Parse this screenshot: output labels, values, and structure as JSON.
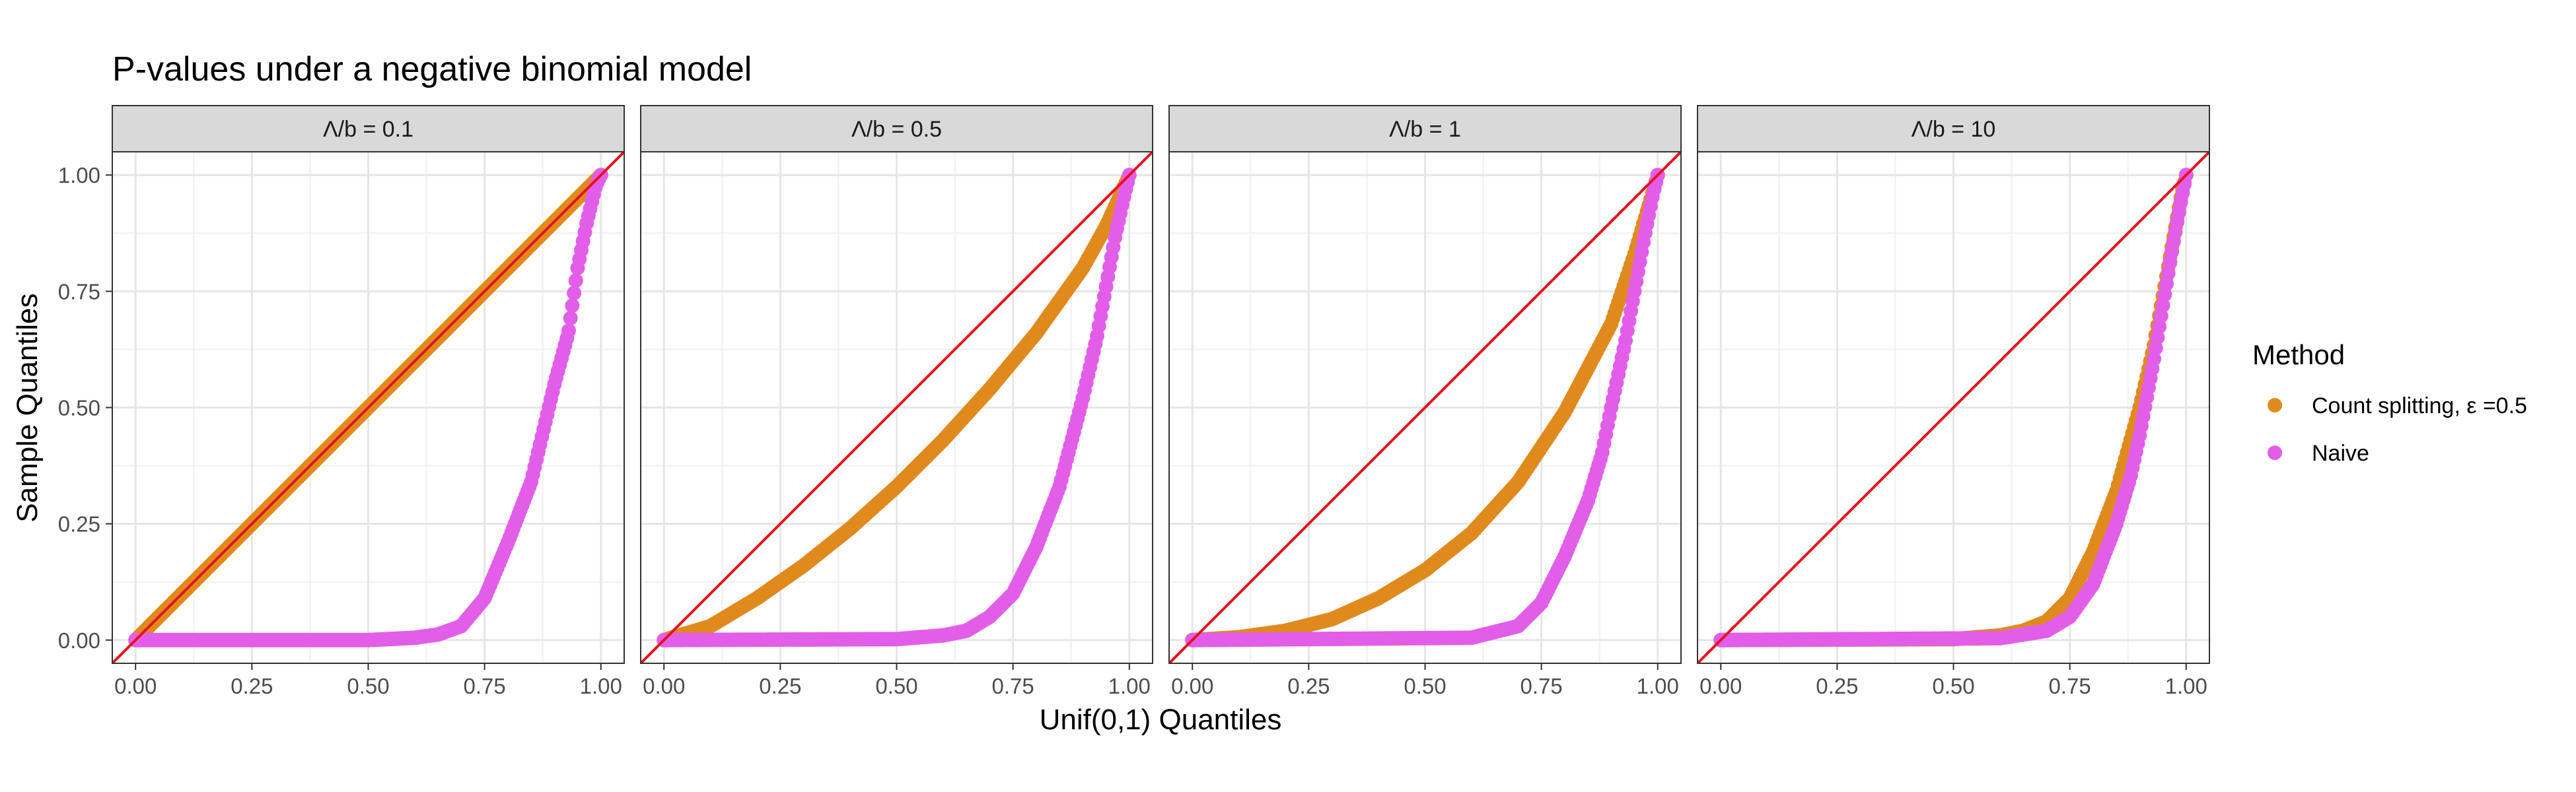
{
  "chart_data": {
    "type": "scatter",
    "title": "P-values under a negative binomial model",
    "xlabel": "Unif(0,1) Quantiles",
    "ylabel": "Sample Quantiles",
    "xlim": [
      -0.05,
      1.05
    ],
    "ylim": [
      -0.05,
      1.05
    ],
    "xticks": [
      "0.00",
      "0.25",
      "0.50",
      "0.75",
      "1.00"
    ],
    "yticks": [
      "0.00",
      "0.25",
      "0.50",
      "0.75",
      "1.00"
    ],
    "grid": true,
    "reference_line": {
      "type": "diagonal",
      "intercept": 0,
      "slope": 1,
      "color": "#e8111c"
    },
    "legend": {
      "title": "Method",
      "position": "right",
      "entries": [
        {
          "label": "Count splitting, ε =0.5",
          "color": "#e08a1e"
        },
        {
          "label": "Naive",
          "color": "#e25ee8"
        }
      ]
    },
    "facets": [
      {
        "label": "Λ/b = 0.1",
        "series": [
          {
            "name": "Count splitting, ε =0.5",
            "x": [
              0,
              0.25,
              0.5,
              0.75,
              1
            ],
            "y": [
              0,
              0.25,
              0.5,
              0.75,
              1
            ]
          },
          {
            "name": "Naive",
            "x": [
              0,
              0.5,
              0.6,
              0.65,
              0.7,
              0.75,
              0.8,
              0.85,
              0.9,
              0.93,
              0.95,
              0.97,
              0.99,
              1
            ],
            "y": [
              0,
              0,
              0.005,
              0.012,
              0.03,
              0.09,
              0.21,
              0.34,
              0.55,
              0.66,
              0.8,
              0.9,
              0.98,
              1
            ]
          }
        ]
      },
      {
        "label": "Λ/b = 0.5",
        "series": [
          {
            "name": "Count splitting, ε =0.5",
            "x": [
              0,
              0.1,
              0.2,
              0.3,
              0.4,
              0.5,
              0.6,
              0.7,
              0.8,
              0.9,
              0.95,
              1
            ],
            "y": [
              0,
              0.03,
              0.09,
              0.16,
              0.24,
              0.33,
              0.43,
              0.54,
              0.66,
              0.8,
              0.89,
              1
            ]
          },
          {
            "name": "Naive",
            "x": [
              0,
              0.5,
              0.6,
              0.65,
              0.7,
              0.75,
              0.8,
              0.85,
              0.9,
              0.93,
              0.95,
              0.97,
              0.99,
              1
            ],
            "y": [
              0,
              0.002,
              0.01,
              0.02,
              0.05,
              0.1,
              0.2,
              0.33,
              0.52,
              0.65,
              0.76,
              0.87,
              0.96,
              1
            ]
          }
        ]
      },
      {
        "label": "Λ/b = 1",
        "series": [
          {
            "name": "Count splitting, ε =0.5",
            "x": [
              0,
              0.1,
              0.2,
              0.3,
              0.4,
              0.5,
              0.6,
              0.7,
              0.8,
              0.9,
              0.95,
              1
            ],
            "y": [
              0,
              0.006,
              0.02,
              0.045,
              0.09,
              0.15,
              0.23,
              0.34,
              0.49,
              0.68,
              0.83,
              1
            ]
          },
          {
            "name": "Naive",
            "x": [
              0,
              0.6,
              0.7,
              0.75,
              0.8,
              0.85,
              0.88,
              0.9,
              0.93,
              0.95,
              0.97,
              0.99,
              1
            ],
            "y": [
              0,
              0.005,
              0.03,
              0.08,
              0.18,
              0.3,
              0.4,
              0.5,
              0.64,
              0.75,
              0.86,
              0.96,
              1
            ]
          }
        ]
      },
      {
        "label": "Λ/b = 10",
        "series": [
          {
            "name": "Count splitting, ε =0.5",
            "x": [
              0,
              0.5,
              0.6,
              0.65,
              0.7,
              0.75,
              0.8,
              0.85,
              0.9,
              0.93,
              0.95,
              0.97,
              0.99,
              1
            ],
            "y": [
              0,
              0.002,
              0.01,
              0.02,
              0.04,
              0.09,
              0.19,
              0.32,
              0.5,
              0.63,
              0.74,
              0.85,
              0.96,
              1
            ]
          },
          {
            "name": "Naive",
            "x": [
              0,
              0.6,
              0.7,
              0.75,
              0.8,
              0.85,
              0.88,
              0.9,
              0.93,
              0.95,
              0.97,
              0.99,
              1
            ],
            "y": [
              0,
              0.004,
              0.02,
              0.05,
              0.12,
              0.25,
              0.35,
              0.44,
              0.6,
              0.72,
              0.84,
              0.95,
              1
            ]
          }
        ]
      }
    ]
  }
}
